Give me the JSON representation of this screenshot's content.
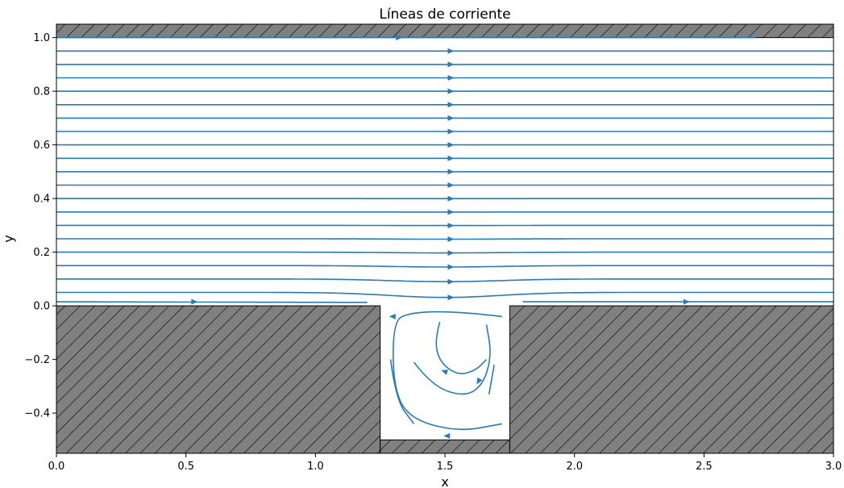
{
  "chart_data": {
    "type": "streamplot",
    "title": "Líneas de corriente",
    "xlabel": "x",
    "ylabel": "y",
    "xlim": [
      0,
      3
    ],
    "ylim": [
      -0.55,
      1.05
    ],
    "x_ticks": [
      "0.0",
      "0.5",
      "1.0",
      "1.5",
      "2.0",
      "2.5",
      "3.0"
    ],
    "y_ticks": [
      "−0.4",
      "−0.2",
      "0.0",
      "0.2",
      "0.4",
      "0.6",
      "0.8",
      "1.0"
    ],
    "geometry": {
      "channel": {
        "x": [
          0,
          3
        ],
        "y": [
          0,
          1
        ]
      },
      "cavity": {
        "x": [
          1.25,
          1.75
        ],
        "y": [
          -0.5,
          0
        ]
      },
      "walls": [
        {
          "x": [
            0,
            3
          ],
          "y": [
            1.0,
            1.05
          ]
        },
        {
          "x": [
            0,
            1.25
          ],
          "y": [
            -0.55,
            0
          ]
        },
        {
          "x": [
            1.75,
            3
          ],
          "y": [
            -0.55,
            0
          ]
        },
        {
          "x": [
            1.25,
            1.75
          ],
          "y": [
            -0.55,
            -0.5
          ]
        }
      ]
    },
    "channel_streamlines_y": [
      1.0,
      0.95,
      0.9,
      0.85,
      0.8,
      0.75,
      0.7,
      0.65,
      0.6,
      0.55,
      0.5,
      0.45,
      0.4,
      0.35,
      0.3,
      0.25,
      0.2,
      0.15,
      0.1,
      0.05,
      0.015
    ],
    "vortex_center": [
      1.55,
      -0.22
    ],
    "colors": {
      "stream": "#2a7ab5",
      "wall": "#808080"
    }
  }
}
